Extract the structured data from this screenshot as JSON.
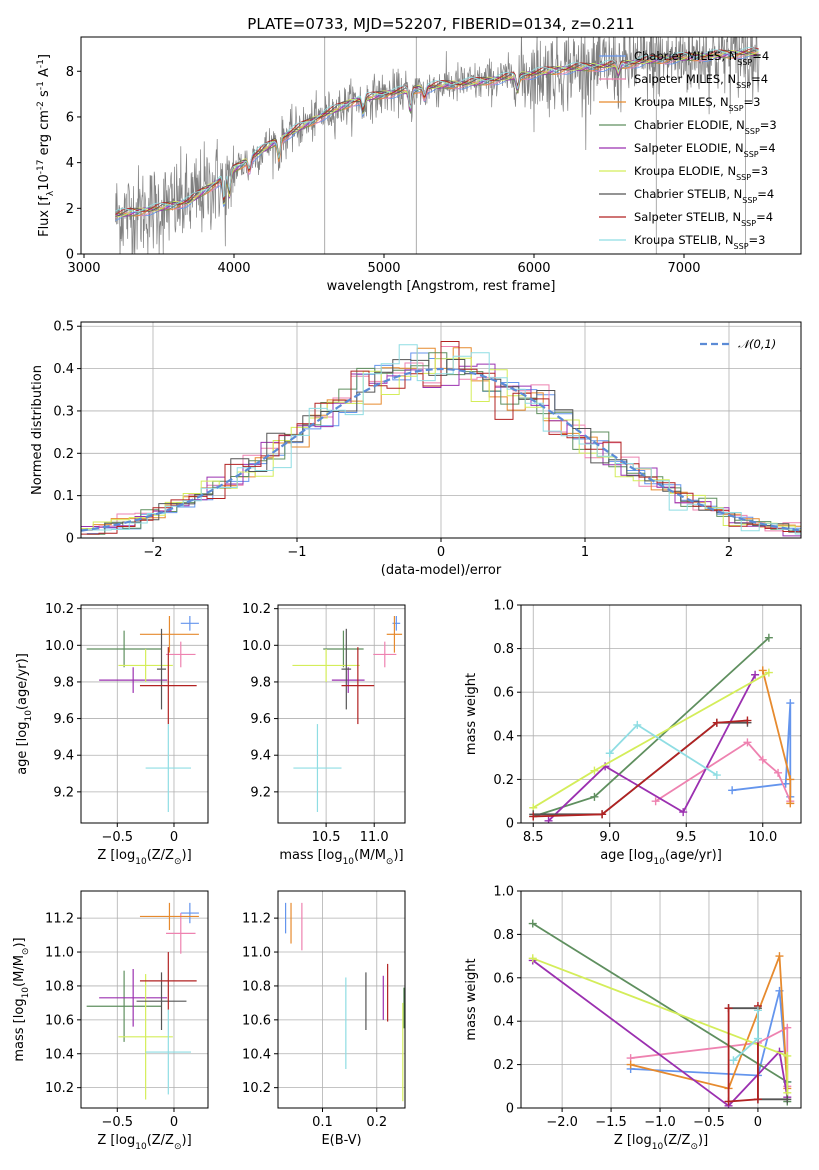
{
  "colors": {
    "chabrier_miles": "#6495ed",
    "salpeter_miles": "#ee82b0",
    "kroupa_miles": "#e68a2e",
    "chabrier_elodie": "#5f8f5f",
    "salpeter_elodie": "#9b30b0",
    "kroupa_elodie": "#d4ed5a",
    "chabrier_stelib": "#555555",
    "salpeter_stelib": "#b22222",
    "kroupa_stelib": "#8fdde3",
    "data": "#808080"
  },
  "chart_data": [
    {
      "id": "spectrum",
      "type": "line",
      "title": "PLATE=0733, MJD=52207, FIBERID=0134, z=0.211",
      "xlabel": "wavelength [Angstrom, rest frame]",
      "ylabel": "Flux [f$_\\lambda$10$^{-17}$ erg cm$^{-2}$ s$^{-1}$ A$^{-1}$]",
      "xlim": [
        2980,
        7780
      ],
      "ylim": [
        0,
        9.5
      ],
      "xticks": [
        3000,
        4000,
        5000,
        6000,
        7000
      ],
      "yticks": [
        0,
        2,
        4,
        6,
        8
      ],
      "grid": false,
      "legend_position": "top-right",
      "continuum_x": [
        3210,
        3500,
        3700,
        3900,
        4000,
        4200,
        4400,
        4600,
        4800,
        5000,
        5200,
        5400,
        5600,
        5800,
        6000,
        6200,
        6400,
        6600,
        6800,
        7000,
        7200,
        7400,
        7500
      ],
      "continuum_y": [
        1.7,
        2.0,
        2.3,
        3.2,
        3.7,
        4.6,
        5.4,
        6.1,
        6.7,
        7.0,
        7.2,
        7.4,
        7.5,
        7.7,
        7.9,
        8.1,
        8.2,
        8.3,
        8.5,
        8.6,
        8.7,
        8.8,
        8.8
      ],
      "series": [
        {
          "name": "Chabrier MILES, N$_{SSP}$=4",
          "color_key": "chabrier_miles"
        },
        {
          "name": "Salpeter MILES, N$_{SSP}$=4",
          "color_key": "salpeter_miles"
        },
        {
          "name": "Kroupa MILES, N$_{SSP}$=3",
          "color_key": "kroupa_miles"
        },
        {
          "name": "Chabrier ELODIE, N$_{SSP}$=3",
          "color_key": "chabrier_elodie"
        },
        {
          "name": "Salpeter ELODIE, N$_{SSP}$=4",
          "color_key": "salpeter_elodie"
        },
        {
          "name": "Kroupa ELODIE, N$_{SSP}$=3",
          "color_key": "kroupa_elodie"
        },
        {
          "name": "Chabrier STELIB, N$_{SSP}$=4",
          "color_key": "chabrier_stelib"
        },
        {
          "name": "Salpeter STELIB, N$_{SSP}$=4",
          "color_key": "salpeter_stelib"
        },
        {
          "name": "Kroupa STELIB, N$_{SSP}$=3",
          "color_key": "kroupa_stelib"
        }
      ]
    },
    {
      "id": "residuals",
      "type": "line",
      "xlabel": "(data-model)/error",
      "ylabel": "Normed distribution",
      "xlim": [
        -2.5,
        2.5
      ],
      "ylim": [
        0,
        0.51
      ],
      "xticks": [
        -2,
        -1,
        0,
        1,
        2
      ],
      "yticks": [
        0.0,
        0.1,
        0.2,
        0.3,
        0.4,
        0.5
      ],
      "grid": true,
      "legend_position": "top-right",
      "reference": {
        "name": "$\\mathcal{N}(0,1)$",
        "color": "#5b8bd6",
        "style": "dashed"
      }
    },
    {
      "id": "age_vs_Z",
      "type": "scatter",
      "xlabel": "Z [log$_{10}$(Z/Z$_\\odot$)]",
      "ylabel": "age  [log$_{10}$(age/yr)]",
      "xlim": [
        -0.82,
        0.3
      ],
      "ylim": [
        9.03,
        10.22
      ],
      "xticks": [
        -0.5,
        0.0
      ],
      "yticks": [
        9.2,
        9.4,
        9.6,
        9.8,
        10.0,
        10.2
      ],
      "grid": true,
      "points": [
        {
          "key": "chabrier_miles",
          "x": 0.14,
          "y": 10.12,
          "xerr": 0.08,
          "yerr": 0.04
        },
        {
          "key": "salpeter_miles",
          "x": 0.06,
          "y": 9.95,
          "xerr": 0.13,
          "yerr": 0.07
        },
        {
          "key": "kroupa_miles",
          "x": -0.04,
          "y": 10.06,
          "xerr": 0.26,
          "yerr": 0.1
        },
        {
          "key": "chabrier_elodie",
          "x": -0.44,
          "y": 9.98,
          "xerr": 0.33,
          "yerr": 0.1
        },
        {
          "key": "salpeter_elodie",
          "x": -0.36,
          "y": 9.81,
          "xerr": 0.3,
          "yerr": 0.07
        },
        {
          "key": "kroupa_elodie",
          "x": -0.25,
          "y": 9.89,
          "xerr": 0.24,
          "yerr": 0.09
        },
        {
          "key": "chabrier_stelib",
          "x": -0.11,
          "y": 9.87,
          "xerr": 0.04,
          "yerr": 0.22
        },
        {
          "key": "salpeter_stelib",
          "x": -0.05,
          "y": 9.78,
          "xerr": 0.25,
          "yerr": 0.21
        },
        {
          "key": "kroupa_stelib",
          "x": -0.05,
          "y": 9.33,
          "xerr": 0.2,
          "yerr": 0.24
        }
      ]
    },
    {
      "id": "age_vs_mass",
      "type": "scatter",
      "xlabel": "mass [log$_{10}$(M/M$_\\odot$)]",
      "ylabel": "",
      "xlim": [
        10.0,
        11.32
      ],
      "ylim": [
        9.03,
        10.22
      ],
      "xticks": [
        10.5,
        11.0
      ],
      "yticks": [
        9.2,
        9.4,
        9.6,
        9.8,
        10.0,
        10.2
      ],
      "grid": true,
      "points": [
        {
          "key": "chabrier_miles",
          "x": 11.23,
          "y": 10.12,
          "xerr": 0.04,
          "yerr": 0.04
        },
        {
          "key": "salpeter_miles",
          "x": 11.11,
          "y": 9.95,
          "xerr": 0.12,
          "yerr": 0.07
        },
        {
          "key": "kroupa_miles",
          "x": 11.21,
          "y": 10.06,
          "xerr": 0.08,
          "yerr": 0.1
        },
        {
          "key": "chabrier_elodie",
          "x": 10.68,
          "y": 9.98,
          "xerr": 0.21,
          "yerr": 0.1
        },
        {
          "key": "salpeter_elodie",
          "x": 10.73,
          "y": 9.81,
          "xerr": 0.17,
          "yerr": 0.07
        },
        {
          "key": "kroupa_elodie",
          "x": 10.5,
          "y": 9.89,
          "xerr": 0.35,
          "yerr": 0.09
        },
        {
          "key": "chabrier_stelib",
          "x": 10.71,
          "y": 9.87,
          "xerr": 0.05,
          "yerr": 0.22
        },
        {
          "key": "salpeter_stelib",
          "x": 10.83,
          "y": 9.78,
          "xerr": 0.17,
          "yerr": 0.21
        },
        {
          "key": "kroupa_stelib",
          "x": 10.41,
          "y": 9.33,
          "xerr": 0.25,
          "yerr": 0.24
        }
      ]
    },
    {
      "id": "massweight_vs_age",
      "type": "line",
      "xlabel": "age  [log$_{10}$(age/yr)]",
      "ylabel": "mass weight",
      "xlim": [
        8.42,
        10.25
      ],
      "ylim": [
        0,
        1.0
      ],
      "xticks": [
        8.5,
        9.0,
        9.5,
        10.0
      ],
      "yticks": [
        0.0,
        0.2,
        0.4,
        0.6,
        0.8,
        1.0
      ],
      "grid": true,
      "series": [
        {
          "key": "chabrier_miles",
          "x": [
            9.8,
            10.15,
            10.18,
            10.18
          ],
          "y": [
            0.15,
            0.18,
            0.55,
            0.12
          ]
        },
        {
          "key": "salpeter_miles",
          "x": [
            9.3,
            9.9,
            10.0,
            10.1,
            10.18
          ],
          "y": [
            0.1,
            0.37,
            0.29,
            0.23,
            0.1
          ]
        },
        {
          "key": "kroupa_miles",
          "x": [
            10.0,
            10.18,
            10.18
          ],
          "y": [
            0.7,
            0.2,
            0.09
          ]
        },
        {
          "key": "chabrier_elodie",
          "x": [
            8.5,
            8.9,
            10.04
          ],
          "y": [
            0.03,
            0.12,
            0.85
          ]
        },
        {
          "key": "salpeter_elodie",
          "x": [
            8.6,
            8.97,
            9.48,
            9.95
          ],
          "y": [
            0.01,
            0.26,
            0.05,
            0.68
          ]
        },
        {
          "key": "kroupa_elodie",
          "x": [
            8.5,
            8.9,
            10.04
          ],
          "y": [
            0.07,
            0.24,
            0.69
          ]
        },
        {
          "key": "chabrier_stelib",
          "x": [
            8.5,
            8.95,
            9.7,
            9.9
          ],
          "y": [
            0.04,
            0.04,
            0.46,
            0.46
          ]
        },
        {
          "key": "salpeter_stelib",
          "x": [
            8.5,
            8.95,
            9.7,
            9.9
          ],
          "y": [
            0.03,
            0.04,
            0.46,
            0.47
          ]
        },
        {
          "key": "kroupa_stelib",
          "x": [
            9.0,
            9.18,
            9.7
          ],
          "y": [
            0.32,
            0.45,
            0.22
          ]
        }
      ]
    },
    {
      "id": "mass_vs_Z",
      "type": "scatter",
      "xlabel": "Z [log$_{10}$(Z/Z$_\\odot$)]",
      "ylabel": "mass [log$_{10}$(M/M$_\\odot$)]",
      "xlim": [
        -0.82,
        0.3
      ],
      "ylim": [
        10.08,
        11.36
      ],
      "xticks": [
        -0.5,
        0.0
      ],
      "yticks": [
        10.2,
        10.4,
        10.6,
        10.8,
        11.0,
        11.2
      ],
      "grid": true,
      "points": [
        {
          "key": "chabrier_miles",
          "x": 0.14,
          "y": 11.23,
          "xerr": 0.08,
          "yerr": 0.06
        },
        {
          "key": "salpeter_miles",
          "x": 0.06,
          "y": 11.11,
          "xerr": 0.13,
          "yerr": 0.12
        },
        {
          "key": "kroupa_miles",
          "x": -0.04,
          "y": 11.21,
          "xerr": 0.26,
          "yerr": 0.08
        },
        {
          "key": "chabrier_elodie",
          "x": -0.44,
          "y": 10.68,
          "xerr": 0.33,
          "yerr": 0.21
        },
        {
          "key": "salpeter_elodie",
          "x": -0.36,
          "y": 10.73,
          "xerr": 0.3,
          "yerr": 0.17
        },
        {
          "key": "kroupa_elodie",
          "x": -0.25,
          "y": 10.5,
          "xerr": 0.24,
          "yerr": 0.37
        },
        {
          "key": "chabrier_stelib",
          "x": -0.11,
          "y": 10.71,
          "xerr": 0.22,
          "yerr": 0.17
        },
        {
          "key": "salpeter_stelib",
          "x": -0.05,
          "y": 10.83,
          "xerr": 0.25,
          "yerr": 0.17
        },
        {
          "key": "kroupa_stelib",
          "x": -0.05,
          "y": 10.41,
          "xerr": 0.2,
          "yerr": 0.25
        }
      ]
    },
    {
      "id": "mass_vs_ebv",
      "type": "scatter",
      "xlabel": "E(B-V)",
      "ylabel": "",
      "xlim": [
        0.018,
        0.252
      ],
      "ylim": [
        10.08,
        11.36
      ],
      "xticks": [
        0.1,
        0.2
      ],
      "yticks": [
        10.2,
        10.4,
        10.6,
        10.8,
        11.0,
        11.2
      ],
      "grid": true,
      "points": [
        {
          "key": "chabrier_miles",
          "x": 0.032,
          "y": 11.2,
          "yerr": 0.09
        },
        {
          "key": "salpeter_miles",
          "x": 0.062,
          "y": 11.15,
          "yerr": 0.14
        },
        {
          "key": "kroupa_miles",
          "x": 0.042,
          "y": 11.17,
          "yerr": 0.12
        },
        {
          "key": "chabrier_elodie",
          "x": 0.25,
          "y": 10.67,
          "yerr": 0.12
        },
        {
          "key": "salpeter_elodie",
          "x": 0.212,
          "y": 10.73,
          "yerr": 0.13
        },
        {
          "key": "kroupa_elodie",
          "x": 0.248,
          "y": 10.41,
          "yerr": 0.29
        },
        {
          "key": "chabrier_stelib",
          "x": 0.18,
          "y": 10.71,
          "yerr": 0.17
        },
        {
          "key": "salpeter_stelib",
          "x": 0.22,
          "y": 10.76,
          "yerr": 0.17
        },
        {
          "key": "kroupa_stelib",
          "x": 0.143,
          "y": 10.58,
          "yerr": 0.27
        }
      ]
    },
    {
      "id": "massweight_vs_Z",
      "type": "line",
      "xlabel": "Z [log$_{10}$(Z/Z$_\\odot$)]",
      "ylabel": "mass weight",
      "xlim": [
        -2.42,
        0.44
      ],
      "ylim": [
        0,
        1.0
      ],
      "xticks": [
        -2.0,
        -1.5,
        -1.0,
        -0.5,
        0.0
      ],
      "yticks": [
        0.0,
        0.2,
        0.4,
        0.6,
        0.8,
        1.0
      ],
      "grid": true,
      "series": [
        {
          "key": "chabrier_miles",
          "x": [
            -1.3,
            0.0,
            0.22,
            0.3
          ],
          "y": [
            0.18,
            0.15,
            0.54,
            0.12
          ]
        },
        {
          "key": "salpeter_miles",
          "x": [
            -1.3,
            0.0,
            0.3,
            0.3
          ],
          "y": [
            0.23,
            0.3,
            0.37,
            0.1
          ]
        },
        {
          "key": "kroupa_miles",
          "x": [
            -1.3,
            -0.3,
            0.22,
            0.3
          ],
          "y": [
            0.2,
            0.09,
            0.7,
            0.09
          ]
        },
        {
          "key": "chabrier_elodie",
          "x": [
            -2.3,
            0.3,
            0.3
          ],
          "y": [
            0.85,
            0.12,
            0.03
          ]
        },
        {
          "key": "salpeter_elodie",
          "x": [
            -2.3,
            -0.3,
            0.22,
            0.3
          ],
          "y": [
            0.68,
            0.01,
            0.26,
            0.05
          ]
        },
        {
          "key": "kroupa_elodie",
          "x": [
            -2.3,
            0.3,
            0.3
          ],
          "y": [
            0.69,
            0.24,
            0.07
          ]
        },
        {
          "key": "chabrier_stelib",
          "x": [
            -0.3,
            0.0,
            0.0,
            0.3
          ],
          "y": [
            0.46,
            0.46,
            0.04,
            0.04
          ]
        },
        {
          "key": "salpeter_stelib",
          "x": [
            -0.3,
            -0.3,
            0.0,
            0.0
          ],
          "y": [
            0.46,
            0.03,
            0.04,
            0.47
          ]
        },
        {
          "key": "kroupa_stelib",
          "x": [
            -0.25,
            0.0,
            0.0
          ],
          "y": [
            0.22,
            0.32,
            0.45
          ]
        }
      ]
    }
  ]
}
